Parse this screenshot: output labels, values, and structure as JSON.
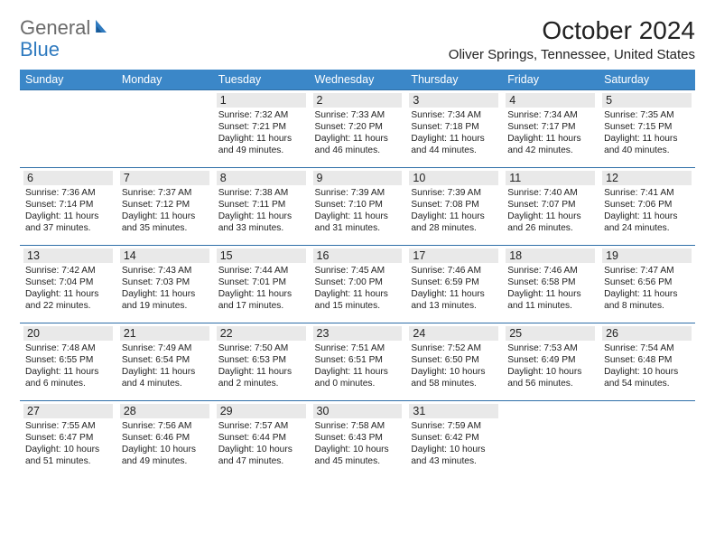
{
  "logo": {
    "part1": "General",
    "part2": "Blue"
  },
  "title": "October 2024",
  "location": "Oliver Springs, Tennessee, United States",
  "colors": {
    "header_bg": "#3b87c8",
    "header_text": "#ffffff",
    "row_border": "#2f6fa8",
    "daynum_bg": "#e9e9e9",
    "text": "#222222",
    "logo_gray": "#6b6b6b",
    "logo_blue": "#2f7abf"
  },
  "dayHeaders": [
    "Sunday",
    "Monday",
    "Tuesday",
    "Wednesday",
    "Thursday",
    "Friday",
    "Saturday"
  ],
  "weeks": [
    [
      null,
      null,
      {
        "n": "1",
        "sr": "7:32 AM",
        "ss": "7:21 PM",
        "dl": "11 hours and 49 minutes."
      },
      {
        "n": "2",
        "sr": "7:33 AM",
        "ss": "7:20 PM",
        "dl": "11 hours and 46 minutes."
      },
      {
        "n": "3",
        "sr": "7:34 AM",
        "ss": "7:18 PM",
        "dl": "11 hours and 44 minutes."
      },
      {
        "n": "4",
        "sr": "7:34 AM",
        "ss": "7:17 PM",
        "dl": "11 hours and 42 minutes."
      },
      {
        "n": "5",
        "sr": "7:35 AM",
        "ss": "7:15 PM",
        "dl": "11 hours and 40 minutes."
      }
    ],
    [
      {
        "n": "6",
        "sr": "7:36 AM",
        "ss": "7:14 PM",
        "dl": "11 hours and 37 minutes."
      },
      {
        "n": "7",
        "sr": "7:37 AM",
        "ss": "7:12 PM",
        "dl": "11 hours and 35 minutes."
      },
      {
        "n": "8",
        "sr": "7:38 AM",
        "ss": "7:11 PM",
        "dl": "11 hours and 33 minutes."
      },
      {
        "n": "9",
        "sr": "7:39 AM",
        "ss": "7:10 PM",
        "dl": "11 hours and 31 minutes."
      },
      {
        "n": "10",
        "sr": "7:39 AM",
        "ss": "7:08 PM",
        "dl": "11 hours and 28 minutes."
      },
      {
        "n": "11",
        "sr": "7:40 AM",
        "ss": "7:07 PM",
        "dl": "11 hours and 26 minutes."
      },
      {
        "n": "12",
        "sr": "7:41 AM",
        "ss": "7:06 PM",
        "dl": "11 hours and 24 minutes."
      }
    ],
    [
      {
        "n": "13",
        "sr": "7:42 AM",
        "ss": "7:04 PM",
        "dl": "11 hours and 22 minutes."
      },
      {
        "n": "14",
        "sr": "7:43 AM",
        "ss": "7:03 PM",
        "dl": "11 hours and 19 minutes."
      },
      {
        "n": "15",
        "sr": "7:44 AM",
        "ss": "7:01 PM",
        "dl": "11 hours and 17 minutes."
      },
      {
        "n": "16",
        "sr": "7:45 AM",
        "ss": "7:00 PM",
        "dl": "11 hours and 15 minutes."
      },
      {
        "n": "17",
        "sr": "7:46 AM",
        "ss": "6:59 PM",
        "dl": "11 hours and 13 minutes."
      },
      {
        "n": "18",
        "sr": "7:46 AM",
        "ss": "6:58 PM",
        "dl": "11 hours and 11 minutes."
      },
      {
        "n": "19",
        "sr": "7:47 AM",
        "ss": "6:56 PM",
        "dl": "11 hours and 8 minutes."
      }
    ],
    [
      {
        "n": "20",
        "sr": "7:48 AM",
        "ss": "6:55 PM",
        "dl": "11 hours and 6 minutes."
      },
      {
        "n": "21",
        "sr": "7:49 AM",
        "ss": "6:54 PM",
        "dl": "11 hours and 4 minutes."
      },
      {
        "n": "22",
        "sr": "7:50 AM",
        "ss": "6:53 PM",
        "dl": "11 hours and 2 minutes."
      },
      {
        "n": "23",
        "sr": "7:51 AM",
        "ss": "6:51 PM",
        "dl": "11 hours and 0 minutes."
      },
      {
        "n": "24",
        "sr": "7:52 AM",
        "ss": "6:50 PM",
        "dl": "10 hours and 58 minutes."
      },
      {
        "n": "25",
        "sr": "7:53 AM",
        "ss": "6:49 PM",
        "dl": "10 hours and 56 minutes."
      },
      {
        "n": "26",
        "sr": "7:54 AM",
        "ss": "6:48 PM",
        "dl": "10 hours and 54 minutes."
      }
    ],
    [
      {
        "n": "27",
        "sr": "7:55 AM",
        "ss": "6:47 PM",
        "dl": "10 hours and 51 minutes."
      },
      {
        "n": "28",
        "sr": "7:56 AM",
        "ss": "6:46 PM",
        "dl": "10 hours and 49 minutes."
      },
      {
        "n": "29",
        "sr": "7:57 AM",
        "ss": "6:44 PM",
        "dl": "10 hours and 47 minutes."
      },
      {
        "n": "30",
        "sr": "7:58 AM",
        "ss": "6:43 PM",
        "dl": "10 hours and 45 minutes."
      },
      {
        "n": "31",
        "sr": "7:59 AM",
        "ss": "6:42 PM",
        "dl": "10 hours and 43 minutes."
      },
      null,
      null
    ]
  ]
}
